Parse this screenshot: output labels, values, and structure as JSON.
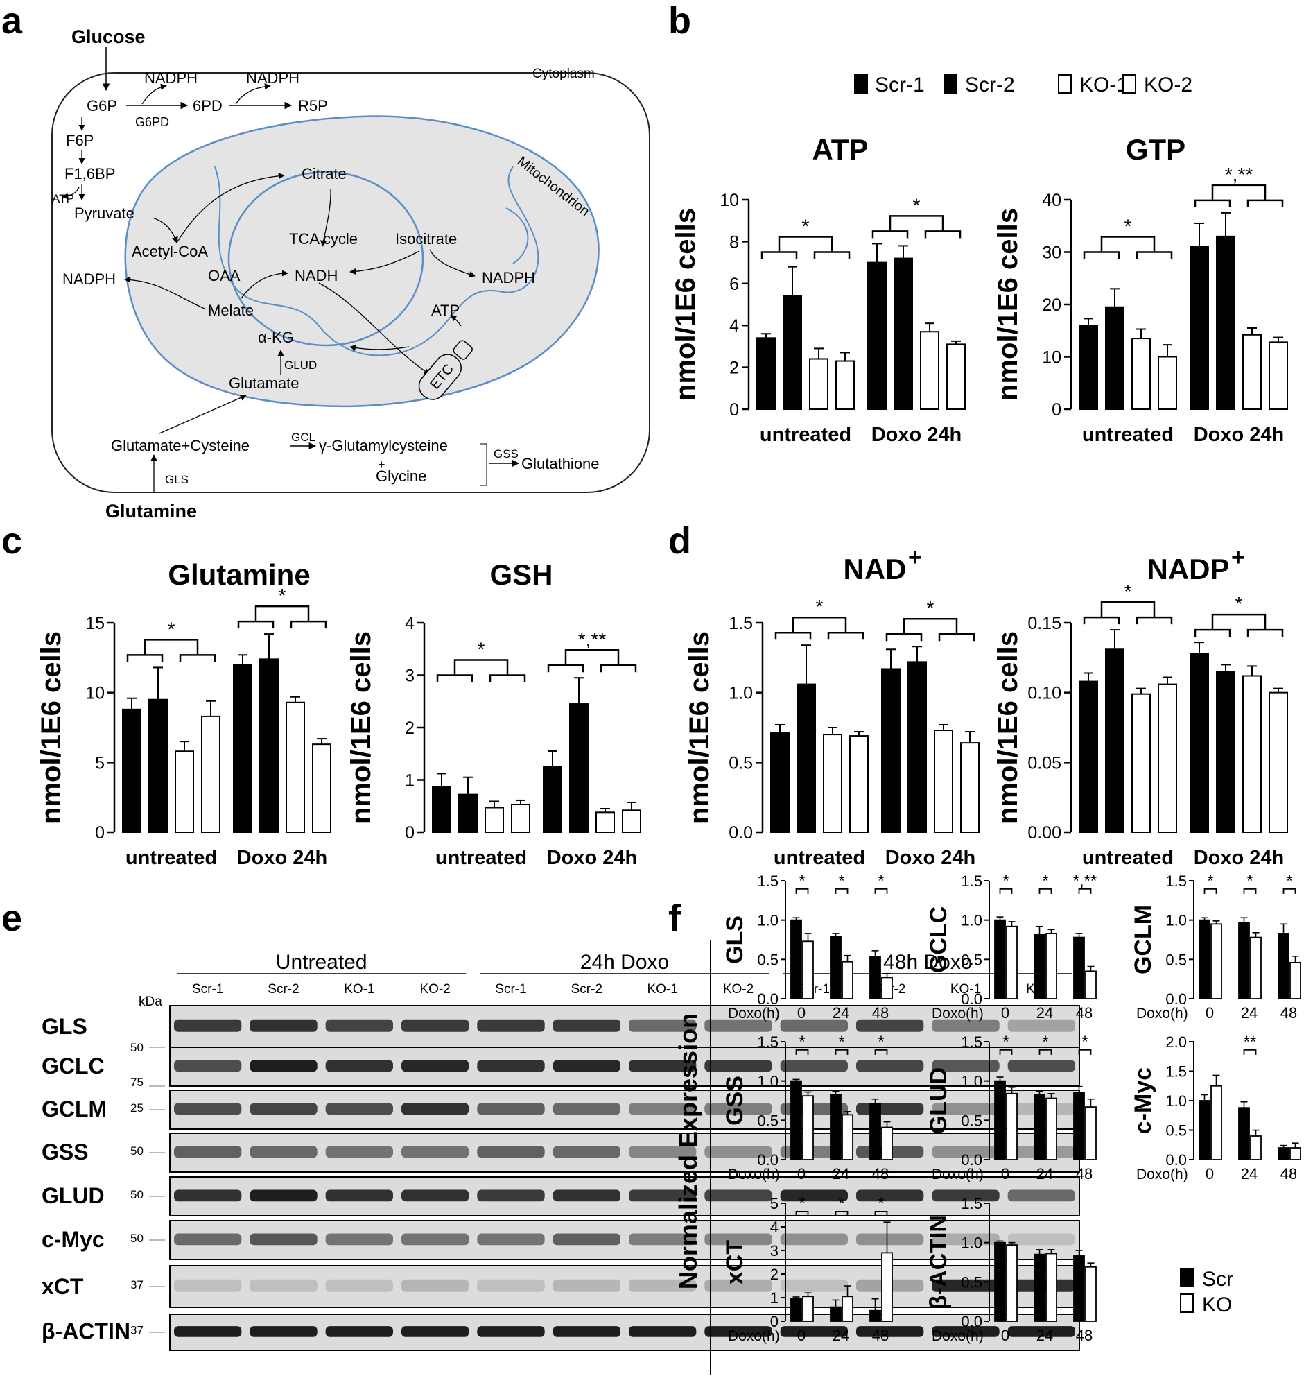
{
  "panel_letters": {
    "a": "a",
    "b": "b",
    "c": "c",
    "d": "d",
    "e": "e",
    "f": "f"
  },
  "legend_b": [
    "Scr-1",
    "Scr-2",
    "KO-1",
    "KO-2"
  ],
  "legend_f": [
    "Scr",
    "KO"
  ],
  "pathway": {
    "cytoplasm": "Cytoplasm",
    "mitochondrion": "Mitochondrion",
    "labels": {
      "glucose": "Glucose",
      "nadph1": "NADPH",
      "g6p": "G6P",
      "g6pd": "G6PD",
      "pd6": "6PD",
      "nadph2": "NADPH",
      "r5p": "R5P",
      "f6p": "F6P",
      "f16bp": "F1,6BP",
      "atp1": "ATP",
      "pyruvate": "Pyruvate",
      "acetylcoa": "Acetyl-CoA",
      "citrate": "Citrate",
      "tca": "TCA cycle",
      "isocitrate": "Isocitrate",
      "nadph3": "NADPH",
      "oaa": "OAA",
      "nadh": "NADH",
      "nadph4": "NADPH",
      "melate": "Melate",
      "atp2": "ATP",
      "akg": "α-KG",
      "glud": "GLUD",
      "glutamate": "Glutamate",
      "etc": "ETC",
      "glucys": "Glutamate+Cysteine",
      "gcl": "GCL",
      "gglu": "γ-Glutamylcysteine",
      "plus": "+",
      "glycine": "Glycine",
      "gss": "GSS",
      "glutathione": "Glutathione",
      "gls": "GLS",
      "glutamine": "Glutamine"
    }
  },
  "blot": {
    "groups": [
      "Untreated",
      "24h Doxo",
      "48h Doxo"
    ],
    "lanes": [
      "Scr-1",
      "Scr-2",
      "KO-1",
      "KO-2",
      "Scr-1",
      "Scr-2",
      "KO-1",
      "KO-2",
      "Scr-1",
      "Scr-2",
      "KO-1",
      "KO-2"
    ],
    "kda": "kDa",
    "rows": [
      {
        "name": "GLS",
        "marker": "50",
        "intensity": [
          0.8,
          0.85,
          0.75,
          0.8,
          0.8,
          0.8,
          0.55,
          0.5,
          0.55,
          0.75,
          0.45,
          0.25
        ]
      },
      {
        "name": "GCLC",
        "marker": "75",
        "intensity": [
          0.7,
          0.95,
          0.85,
          0.9,
          0.85,
          0.9,
          0.85,
          0.8,
          0.7,
          0.75,
          0.65,
          0.7
        ]
      },
      {
        "name": "GCLM",
        "marker": "25",
        "intensity": [
          0.7,
          0.75,
          0.7,
          0.85,
          0.6,
          0.55,
          0.45,
          0.45,
          0.55,
          0.8,
          0.35,
          0.15
        ]
      },
      {
        "name": "GSS",
        "marker": "50",
        "intensity": [
          0.6,
          0.55,
          0.5,
          0.5,
          0.6,
          0.55,
          0.4,
          0.35,
          0.45,
          0.65,
          0.35,
          0.3
        ]
      },
      {
        "name": "GLUD",
        "marker": "50",
        "intensity": [
          0.85,
          0.95,
          0.85,
          0.85,
          0.8,
          0.85,
          0.8,
          0.75,
          0.9,
          0.85,
          0.8,
          0.55
        ]
      },
      {
        "name": "c-Myc",
        "marker": "50",
        "intensity": [
          0.55,
          0.65,
          0.5,
          0.5,
          0.5,
          0.6,
          0.45,
          0.4,
          0.35,
          0.35,
          0.2,
          0.1
        ]
      },
      {
        "name": "xCT",
        "marker": "37",
        "intensity": [
          0.1,
          0.1,
          0.1,
          0.15,
          0.1,
          0.15,
          0.15,
          0.2,
          0.1,
          0.25,
          0.9,
          0.85
        ]
      },
      {
        "name": "β-ACTIN",
        "marker": "37",
        "intensity": [
          0.95,
          0.95,
          0.95,
          0.95,
          0.95,
          0.95,
          0.95,
          0.95,
          0.95,
          0.95,
          0.95,
          0.95
        ]
      }
    ]
  },
  "f_ylabel": "Normalized Expression",
  "f_xprefix": "Doxo(h)",
  "chart_data": [
    {
      "id": "ATP",
      "type": "bar",
      "title": "ATP",
      "ylabel": "nmol/1E6 cells",
      "ylim": [
        0,
        10
      ],
      "yticks": [
        "0",
        "2",
        "4",
        "6",
        "8",
        "10"
      ],
      "categories": [
        "untreated",
        "Doxo 24h"
      ],
      "series": [
        {
          "name": "Scr-1",
          "values": [
            3.4,
            7.0
          ],
          "err": [
            0.2,
            0.9
          ]
        },
        {
          "name": "Scr-2",
          "values": [
            5.4,
            7.2
          ],
          "err": [
            1.4,
            0.6
          ]
        },
        {
          "name": "KO-1",
          "values": [
            2.4,
            3.7
          ],
          "err": [
            0.5,
            0.4
          ]
        },
        {
          "name": "KO-2",
          "values": [
            2.3,
            3.1
          ],
          "err": [
            0.4,
            0.15
          ]
        }
      ],
      "sig": [
        "*",
        "*"
      ]
    },
    {
      "id": "GTP",
      "type": "bar",
      "title": "GTP",
      "ylabel": "nmol/1E6 cells",
      "ylim": [
        0,
        40
      ],
      "yticks": [
        "0",
        "10",
        "20",
        "30",
        "40"
      ],
      "categories": [
        "untreated",
        "Doxo 24h"
      ],
      "series": [
        {
          "name": "Scr-1",
          "values": [
            16,
            31
          ],
          "err": [
            1.3,
            4.5
          ]
        },
        {
          "name": "Scr-2",
          "values": [
            19.5,
            33
          ],
          "err": [
            3.5,
            4.5
          ]
        },
        {
          "name": "KO-1",
          "values": [
            13.5,
            14.2
          ],
          "err": [
            1.8,
            1.3
          ]
        },
        {
          "name": "KO-2",
          "values": [
            10,
            12.8
          ],
          "err": [
            2.3,
            0.9
          ]
        }
      ],
      "sig": [
        "*",
        "*,**"
      ]
    },
    {
      "id": "Glutamine",
      "type": "bar",
      "title": "Glutamine",
      "ylabel": "nmol/1E6 cells",
      "ylim": [
        0,
        15
      ],
      "yticks": [
        "0",
        "5",
        "10",
        "15"
      ],
      "categories": [
        "untreated",
        "Doxo 24h"
      ],
      "series": [
        {
          "name": "Scr-1",
          "values": [
            8.8,
            12.0
          ],
          "err": [
            0.8,
            0.7
          ]
        },
        {
          "name": "Scr-2",
          "values": [
            9.5,
            12.4
          ],
          "err": [
            2.3,
            1.8
          ]
        },
        {
          "name": "KO-1",
          "values": [
            5.8,
            9.3
          ],
          "err": [
            0.7,
            0.4
          ]
        },
        {
          "name": "KO-2",
          "values": [
            8.3,
            6.3
          ],
          "err": [
            1.1,
            0.4
          ]
        }
      ],
      "sig": [
        "*",
        "*"
      ]
    },
    {
      "id": "GSH",
      "type": "bar",
      "title": "GSH",
      "ylabel": "nmol/1E6 cells",
      "ylim": [
        0,
        4
      ],
      "yticks": [
        "0",
        "1",
        "2",
        "3",
        "4"
      ],
      "categories": [
        "untreated",
        "Doxo 24h"
      ],
      "series": [
        {
          "name": "Scr-1",
          "values": [
            0.87,
            1.25
          ],
          "err": [
            0.25,
            0.3
          ]
        },
        {
          "name": "Scr-2",
          "values": [
            0.72,
            2.45
          ],
          "err": [
            0.33,
            0.5
          ]
        },
        {
          "name": "KO-1",
          "values": [
            0.47,
            0.38
          ],
          "err": [
            0.12,
            0.07
          ]
        },
        {
          "name": "KO-2",
          "values": [
            0.53,
            0.42
          ],
          "err": [
            0.08,
            0.15
          ]
        }
      ],
      "sig": [
        "*",
        "*,**"
      ]
    },
    {
      "id": "NAD",
      "type": "bar",
      "title": "NAD",
      "title_sup": "+",
      "ylabel": "nmol/1E6 cells",
      "ylim": [
        0,
        1.5
      ],
      "yticks": [
        "0.0",
        "0.5",
        "1.0",
        "1.5"
      ],
      "categories": [
        "untreated",
        "Doxo 24h"
      ],
      "series": [
        {
          "name": "Scr-1",
          "values": [
            0.71,
            1.17
          ],
          "err": [
            0.06,
            0.14
          ]
        },
        {
          "name": "Scr-2",
          "values": [
            1.06,
            1.22
          ],
          "err": [
            0.28,
            0.11
          ]
        },
        {
          "name": "KO-1",
          "values": [
            0.7,
            0.73
          ],
          "err": [
            0.05,
            0.04
          ]
        },
        {
          "name": "KO-2",
          "values": [
            0.69,
            0.64
          ],
          "err": [
            0.03,
            0.08
          ]
        }
      ],
      "sig": [
        "*",
        "*"
      ]
    },
    {
      "id": "NADP",
      "type": "bar",
      "title": "NADP",
      "title_sup": "+",
      "ylabel": "nmol/1E6 cells",
      "ylim": [
        0,
        0.15
      ],
      "yticks": [
        "0.00",
        "0.05",
        "0.10",
        "0.15"
      ],
      "categories": [
        "untreated",
        "Doxo 24h"
      ],
      "series": [
        {
          "name": "Scr-1",
          "values": [
            0.108,
            0.128
          ],
          "err": [
            0.006,
            0.008
          ]
        },
        {
          "name": "Scr-2",
          "values": [
            0.131,
            0.115
          ],
          "err": [
            0.014,
            0.005
          ]
        },
        {
          "name": "KO-1",
          "values": [
            0.099,
            0.112
          ],
          "err": [
            0.004,
            0.007
          ]
        },
        {
          "name": "KO-2",
          "values": [
            0.106,
            0.1
          ],
          "err": [
            0.005,
            0.003
          ]
        }
      ],
      "sig": [
        "*",
        "*"
      ]
    },
    {
      "id": "f-GLS",
      "type": "bar",
      "ylabel": "GLS",
      "ylim": [
        0,
        1.5
      ],
      "yticks": [
        "0.0",
        "0.5",
        "1.0",
        "1.5"
      ],
      "categories": [
        "0",
        "24",
        "48"
      ],
      "series": [
        {
          "name": "Scr",
          "values": [
            1.0,
            0.79,
            0.53
          ],
          "err": [
            0.03,
            0.04,
            0.08
          ]
        },
        {
          "name": "KO",
          "values": [
            0.73,
            0.47,
            0.27
          ],
          "err": [
            0.1,
            0.08,
            0.05
          ]
        }
      ],
      "sig": [
        "*",
        "*",
        "*"
      ]
    },
    {
      "id": "f-GCLC",
      "type": "bar",
      "ylabel": "GCLC",
      "ylim": [
        0,
        1.5
      ],
      "yticks": [
        "0.0",
        "0.5",
        "1.0",
        "1.5"
      ],
      "categories": [
        "0",
        "24",
        "48"
      ],
      "series": [
        {
          "name": "Scr",
          "values": [
            1.0,
            0.82,
            0.78
          ],
          "err": [
            0.04,
            0.1,
            0.05
          ]
        },
        {
          "name": "KO",
          "values": [
            0.92,
            0.83,
            0.35
          ],
          "err": [
            0.06,
            0.05,
            0.06
          ]
        }
      ],
      "sig": [
        "*",
        "*",
        "*,**"
      ]
    },
    {
      "id": "f-GCLM",
      "type": "bar",
      "ylabel": "GCLM",
      "ylim": [
        0,
        1.5
      ],
      "yticks": [
        "0.0",
        "0.5",
        "1.0",
        "1.5"
      ],
      "categories": [
        "0",
        "24",
        "48"
      ],
      "series": [
        {
          "name": "Scr",
          "values": [
            1.0,
            0.97,
            0.83
          ],
          "err": [
            0.03,
            0.06,
            0.12
          ]
        },
        {
          "name": "KO",
          "values": [
            0.95,
            0.78,
            0.46
          ],
          "err": [
            0.04,
            0.06,
            0.08
          ]
        }
      ],
      "sig": [
        "*",
        "*",
        "*"
      ]
    },
    {
      "id": "f-GSS",
      "type": "bar",
      "ylabel": "GSS",
      "ylim": [
        0,
        1.5
      ],
      "yticks": [
        "0.0",
        "0.5",
        "1.0",
        "1.5"
      ],
      "categories": [
        "0",
        "24",
        "48"
      ],
      "series": [
        {
          "name": "Scr",
          "values": [
            1.0,
            0.83,
            0.71
          ],
          "err": [
            0.02,
            0.04,
            0.06
          ]
        },
        {
          "name": "KO",
          "values": [
            0.81,
            0.57,
            0.41
          ],
          "err": [
            0.05,
            0.04,
            0.07
          ]
        }
      ],
      "sig": [
        "*",
        "*",
        "*"
      ]
    },
    {
      "id": "f-GLUD",
      "type": "bar",
      "ylabel": "GLUD",
      "ylim": [
        0,
        1.5
      ],
      "yticks": [
        "0.0",
        "0.5",
        "1.0",
        "1.5"
      ],
      "categories": [
        "0",
        "24",
        "48"
      ],
      "series": [
        {
          "name": "Scr",
          "values": [
            1.0,
            0.83,
            0.85
          ],
          "err": [
            0.05,
            0.04,
            0.08
          ]
        },
        {
          "name": "KO",
          "values": [
            0.84,
            0.78,
            0.67
          ],
          "err": [
            0.08,
            0.06,
            0.1
          ]
        }
      ],
      "sig": [
        "*",
        "*",
        "*"
      ]
    },
    {
      "id": "f-cMyc",
      "type": "bar",
      "ylabel": "c-Myc",
      "ylim": [
        0,
        2.0
      ],
      "yticks": [
        "0.0",
        "0.5",
        "1.0",
        "1.5",
        "2.0"
      ],
      "categories": [
        "0",
        "24",
        "48"
      ],
      "series": [
        {
          "name": "Scr",
          "values": [
            1.0,
            0.88,
            0.2
          ],
          "err": [
            0.1,
            0.1,
            0.04
          ]
        },
        {
          "name": "KO",
          "values": [
            1.25,
            0.4,
            0.2
          ],
          "err": [
            0.18,
            0.1,
            0.08
          ]
        }
      ],
      "sig": [
        "",
        "**",
        ""
      ]
    },
    {
      "id": "f-xCT",
      "type": "bar",
      "ylabel": "xCT",
      "ylim": [
        0,
        5
      ],
      "yticks": [
        "0",
        "1",
        "2",
        "3",
        "4",
        "5"
      ],
      "categories": [
        "0",
        "24",
        "48"
      ],
      "series": [
        {
          "name": "Scr",
          "values": [
            0.95,
            0.6,
            0.45
          ],
          "err": [
            0.08,
            0.3,
            0.5
          ]
        },
        {
          "name": "KO",
          "values": [
            1.05,
            1.05,
            2.9
          ],
          "err": [
            0.15,
            0.45,
            1.3
          ]
        }
      ],
      "sig": [
        "*",
        "*",
        "*"
      ]
    },
    {
      "id": "f-bACTIN",
      "type": "bar",
      "ylabel": "β-ACTIN",
      "ylim": [
        0,
        1.5
      ],
      "yticks": [
        "0.0",
        "0.5",
        "1.0",
        "1.5"
      ],
      "categories": [
        "0",
        "24",
        "48"
      ],
      "series": [
        {
          "name": "Scr",
          "values": [
            1.0,
            0.85,
            0.83
          ],
          "err": [
            0.02,
            0.06,
            0.07
          ]
        },
        {
          "name": "KO",
          "values": [
            0.97,
            0.86,
            0.69
          ],
          "err": [
            0.03,
            0.05,
            0.05
          ]
        }
      ],
      "sig": [
        "",
        "",
        ""
      ]
    }
  ]
}
